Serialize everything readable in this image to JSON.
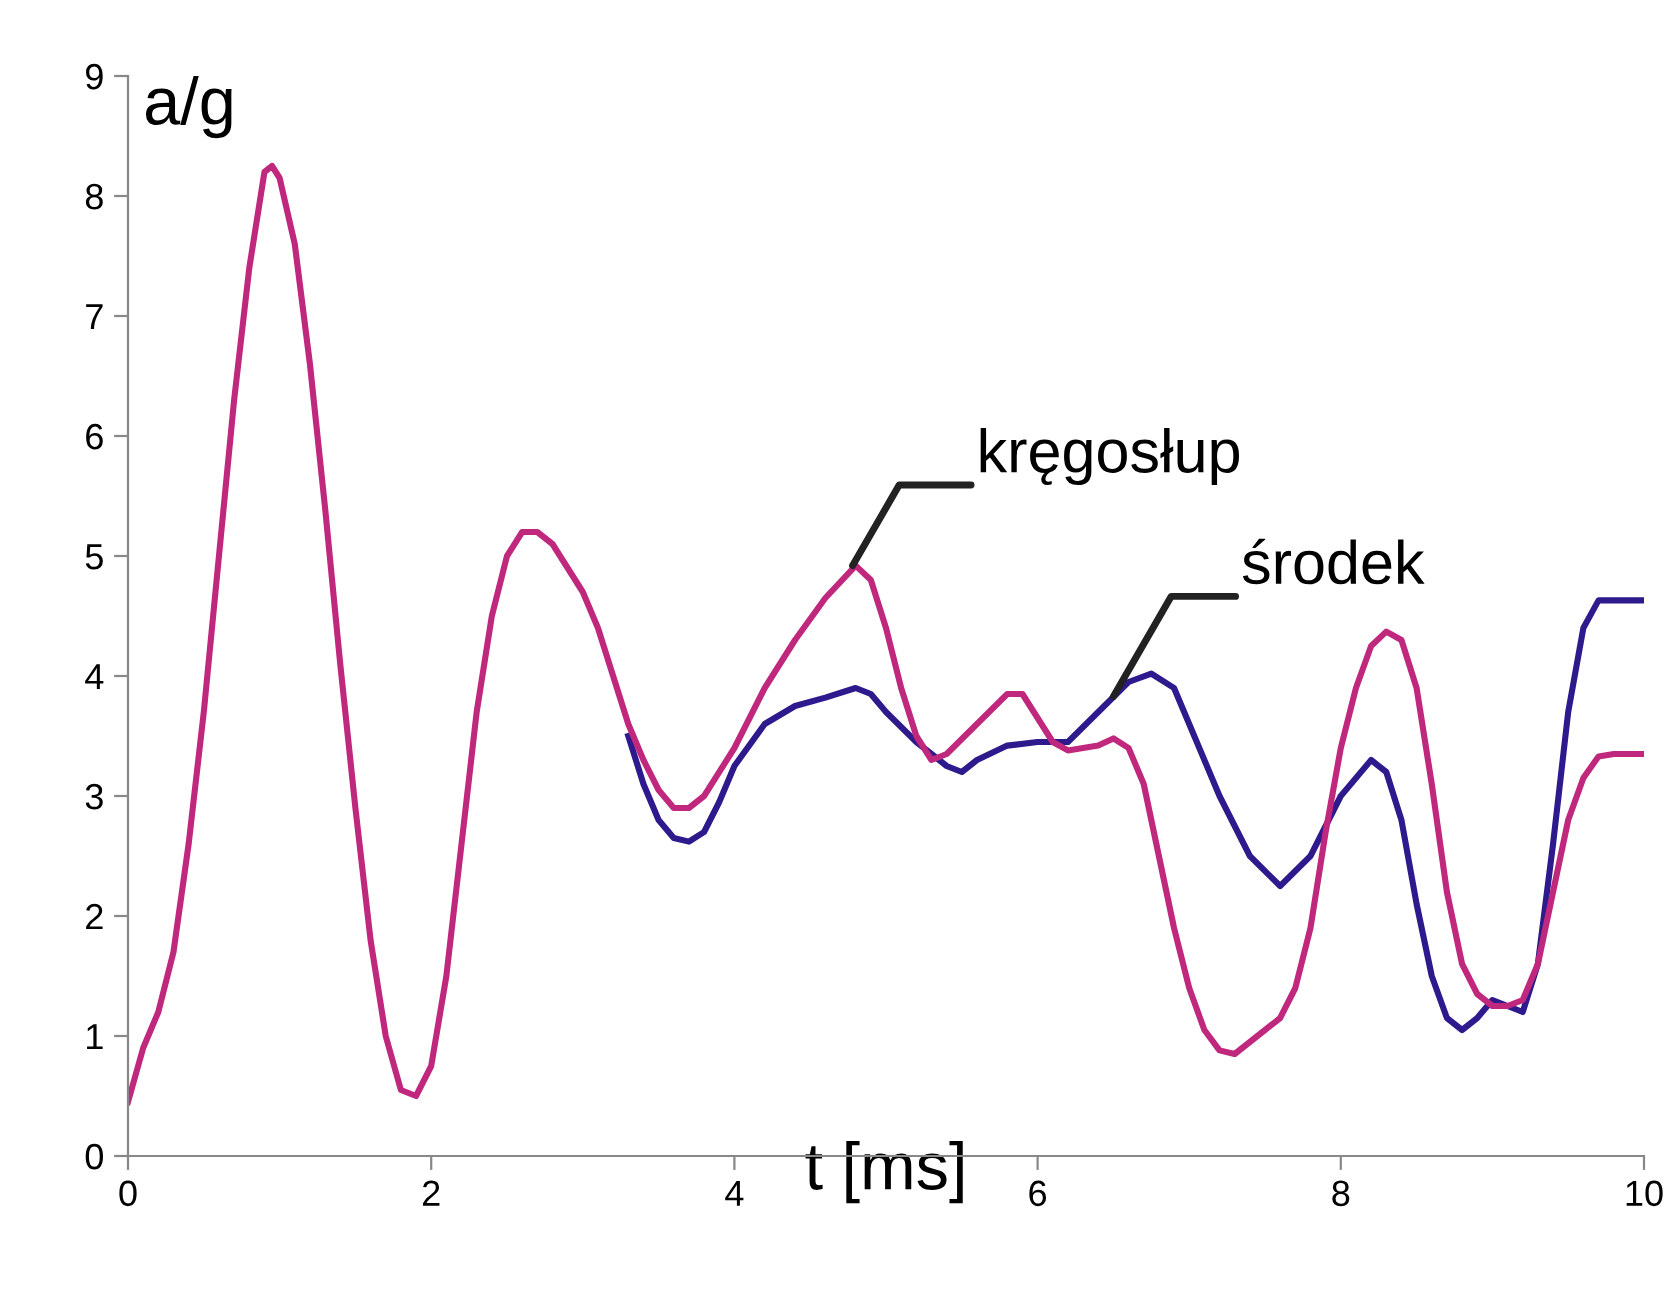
{
  "chart_data": {
    "type": "line",
    "xlabel": "t [ms]",
    "ylabel": "a/g",
    "xlim": [
      0,
      10
    ],
    "ylim": [
      0,
      9
    ],
    "xticks": [
      0,
      2,
      4,
      6,
      8,
      10
    ],
    "yticks": [
      0,
      1,
      2,
      3,
      4,
      5,
      6,
      7,
      8,
      9
    ],
    "grid": false,
    "legend": false,
    "marker": "none",
    "line_style": "solid",
    "series": [
      {
        "color": "#2e1a8c",
        "x": [
          3.3,
          3.4,
          3.5,
          3.6,
          3.7,
          3.8,
          3.9,
          4.0,
          4.2,
          4.4,
          4.6,
          4.8,
          4.9,
          5.0,
          5.2,
          5.4,
          5.5,
          5.6,
          5.8,
          6.0,
          6.2,
          6.4,
          6.6,
          6.75,
          6.9,
          7.0,
          7.2,
          7.4,
          7.6,
          7.8,
          8.0,
          8.2,
          8.3,
          8.4,
          8.5,
          8.6,
          8.7,
          8.8,
          8.9,
          9.0,
          9.1,
          9.2,
          9.3,
          9.4,
          9.5,
          9.6,
          9.7,
          10
        ],
        "values": [
          3.5,
          3.1,
          2.8,
          2.65,
          2.62,
          2.7,
          2.95,
          3.25,
          3.6,
          3.75,
          3.82,
          3.9,
          3.85,
          3.7,
          3.45,
          3.25,
          3.2,
          3.3,
          3.42,
          3.45,
          3.45,
          3.7,
          3.95,
          4.02,
          3.9,
          3.6,
          3.0,
          2.5,
          2.25,
          2.5,
          3.0,
          3.3,
          3.2,
          2.8,
          2.1,
          1.5,
          1.15,
          1.05,
          1.15,
          1.3,
          1.25,
          1.2,
          1.6,
          2.6,
          3.7,
          4.4,
          4.63,
          4.63
        ]
      },
      {
        "color": "#c0287d",
        "x": [
          0,
          0.1,
          0.2,
          0.3,
          0.4,
          0.5,
          0.6,
          0.7,
          0.8,
          0.9,
          0.95,
          1.0,
          1.1,
          1.2,
          1.3,
          1.4,
          1.5,
          1.6,
          1.7,
          1.8,
          1.9,
          2.0,
          2.1,
          2.2,
          2.3,
          2.4,
          2.5,
          2.6,
          2.7,
          2.8,
          2.9,
          3.0,
          3.1,
          3.2,
          3.3,
          3.4,
          3.5,
          3.6,
          3.7,
          3.8,
          4.0,
          4.2,
          4.4,
          4.6,
          4.8,
          4.9,
          5.0,
          5.1,
          5.2,
          5.3,
          5.4,
          5.6,
          5.8,
          5.9,
          6.0,
          6.1,
          6.2,
          6.4,
          6.5,
          6.6,
          6.7,
          6.8,
          6.9,
          7.0,
          7.1,
          7.2,
          7.3,
          7.4,
          7.5,
          7.6,
          7.7,
          7.8,
          7.9,
          8.0,
          8.1,
          8.2,
          8.3,
          8.4,
          8.5,
          8.6,
          8.7,
          8.8,
          8.9,
          9.0,
          9.1,
          9.2,
          9.3,
          9.4,
          9.5,
          9.6,
          9.7,
          9.8,
          10
        ],
        "values": [
          0.45,
          0.9,
          1.2,
          1.7,
          2.6,
          3.7,
          5.0,
          6.3,
          7.4,
          8.2,
          8.25,
          8.15,
          7.6,
          6.6,
          5.4,
          4.1,
          2.9,
          1.8,
          1.0,
          0.55,
          0.5,
          0.75,
          1.5,
          2.6,
          3.7,
          4.5,
          5.0,
          5.2,
          5.2,
          5.1,
          4.9,
          4.7,
          4.4,
          4.0,
          3.6,
          3.3,
          3.05,
          2.9,
          2.9,
          3.0,
          3.4,
          3.9,
          4.3,
          4.65,
          4.92,
          4.8,
          4.4,
          3.9,
          3.5,
          3.3,
          3.35,
          3.6,
          3.85,
          3.85,
          3.65,
          3.45,
          3.38,
          3.42,
          3.48,
          3.4,
          3.1,
          2.5,
          1.9,
          1.4,
          1.05,
          0.88,
          0.85,
          0.95,
          1.05,
          1.15,
          1.4,
          1.9,
          2.7,
          3.4,
          3.9,
          4.25,
          4.37,
          4.3,
          3.9,
          3.1,
          2.2,
          1.6,
          1.35,
          1.25,
          1.25,
          1.3,
          1.6,
          2.2,
          2.8,
          3.15,
          3.33,
          3.35,
          3.35
        ]
      }
    ],
    "annotations": [
      {
        "text": "kręgosłup",
        "x": 4.78,
        "y": 4.92
      },
      {
        "text": "środek",
        "x": 6.5,
        "y": 3.83
      }
    ]
  }
}
